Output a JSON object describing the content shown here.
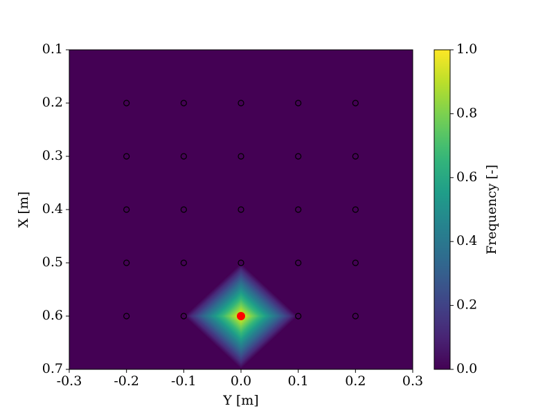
{
  "chart_data": {
    "type": "heatmap",
    "xlabel": "Y [m]",
    "ylabel": "X [m]",
    "xlim": [
      -0.3,
      0.3
    ],
    "xticks": [
      -0.3,
      -0.2,
      -0.1,
      {
        "value": 0,
        "label": "0.0"
      },
      0.1,
      0.2,
      0.3
    ],
    "ylim": [
      0.7,
      0.1
    ],
    "yticks": [
      0.1,
      0.2,
      0.3,
      0.4,
      0.5,
      0.6,
      0.7
    ],
    "colormap": "viridis",
    "field": {
      "x": [
        0
      ],
      "y": [
        0.6
      ],
      "values": [
        1
      ]
    },
    "sensors": {
      "x": [
        -0.2,
        -0.1,
        0,
        0.1,
        0.2,
        -0.2,
        -0.1,
        0,
        0.1,
        0.2,
        -0.2,
        -0.1,
        0,
        0.1,
        0.2,
        -0.2,
        -0.1,
        0,
        0.1,
        0.2,
        -0.2,
        -0.1,
        0,
        0.1,
        0.2
      ],
      "y": [
        0.2,
        0.2,
        0.2,
        0.2,
        0.2,
        0.3,
        0.3,
        0.3,
        0.3,
        0.3,
        0.4,
        0.4,
        0.4,
        0.4,
        0.4,
        0.5,
        0.5,
        0.5,
        0.5,
        0.5,
        0.6,
        0.6,
        0.6,
        0.6,
        0.6
      ],
      "color": "#000000"
    },
    "source": {
      "x": 0,
      "y": 0.6,
      "color": "#ff0000"
    },
    "colorbar": {
      "label": "Frequency [-]",
      "lim": [
        0,
        1
      ],
      "ticks": [
        {
          "value": 0,
          "label": "0.0"
        },
        {
          "value": 0.2,
          "label": "0.2"
        },
        {
          "value": 0.4,
          "label": "0.4"
        },
        {
          "value": 0.6,
          "label": "0.6"
        },
        {
          "value": 0.8,
          "label": "0.8"
        },
        {
          "value": 1,
          "label": "1.0"
        }
      ]
    }
  }
}
